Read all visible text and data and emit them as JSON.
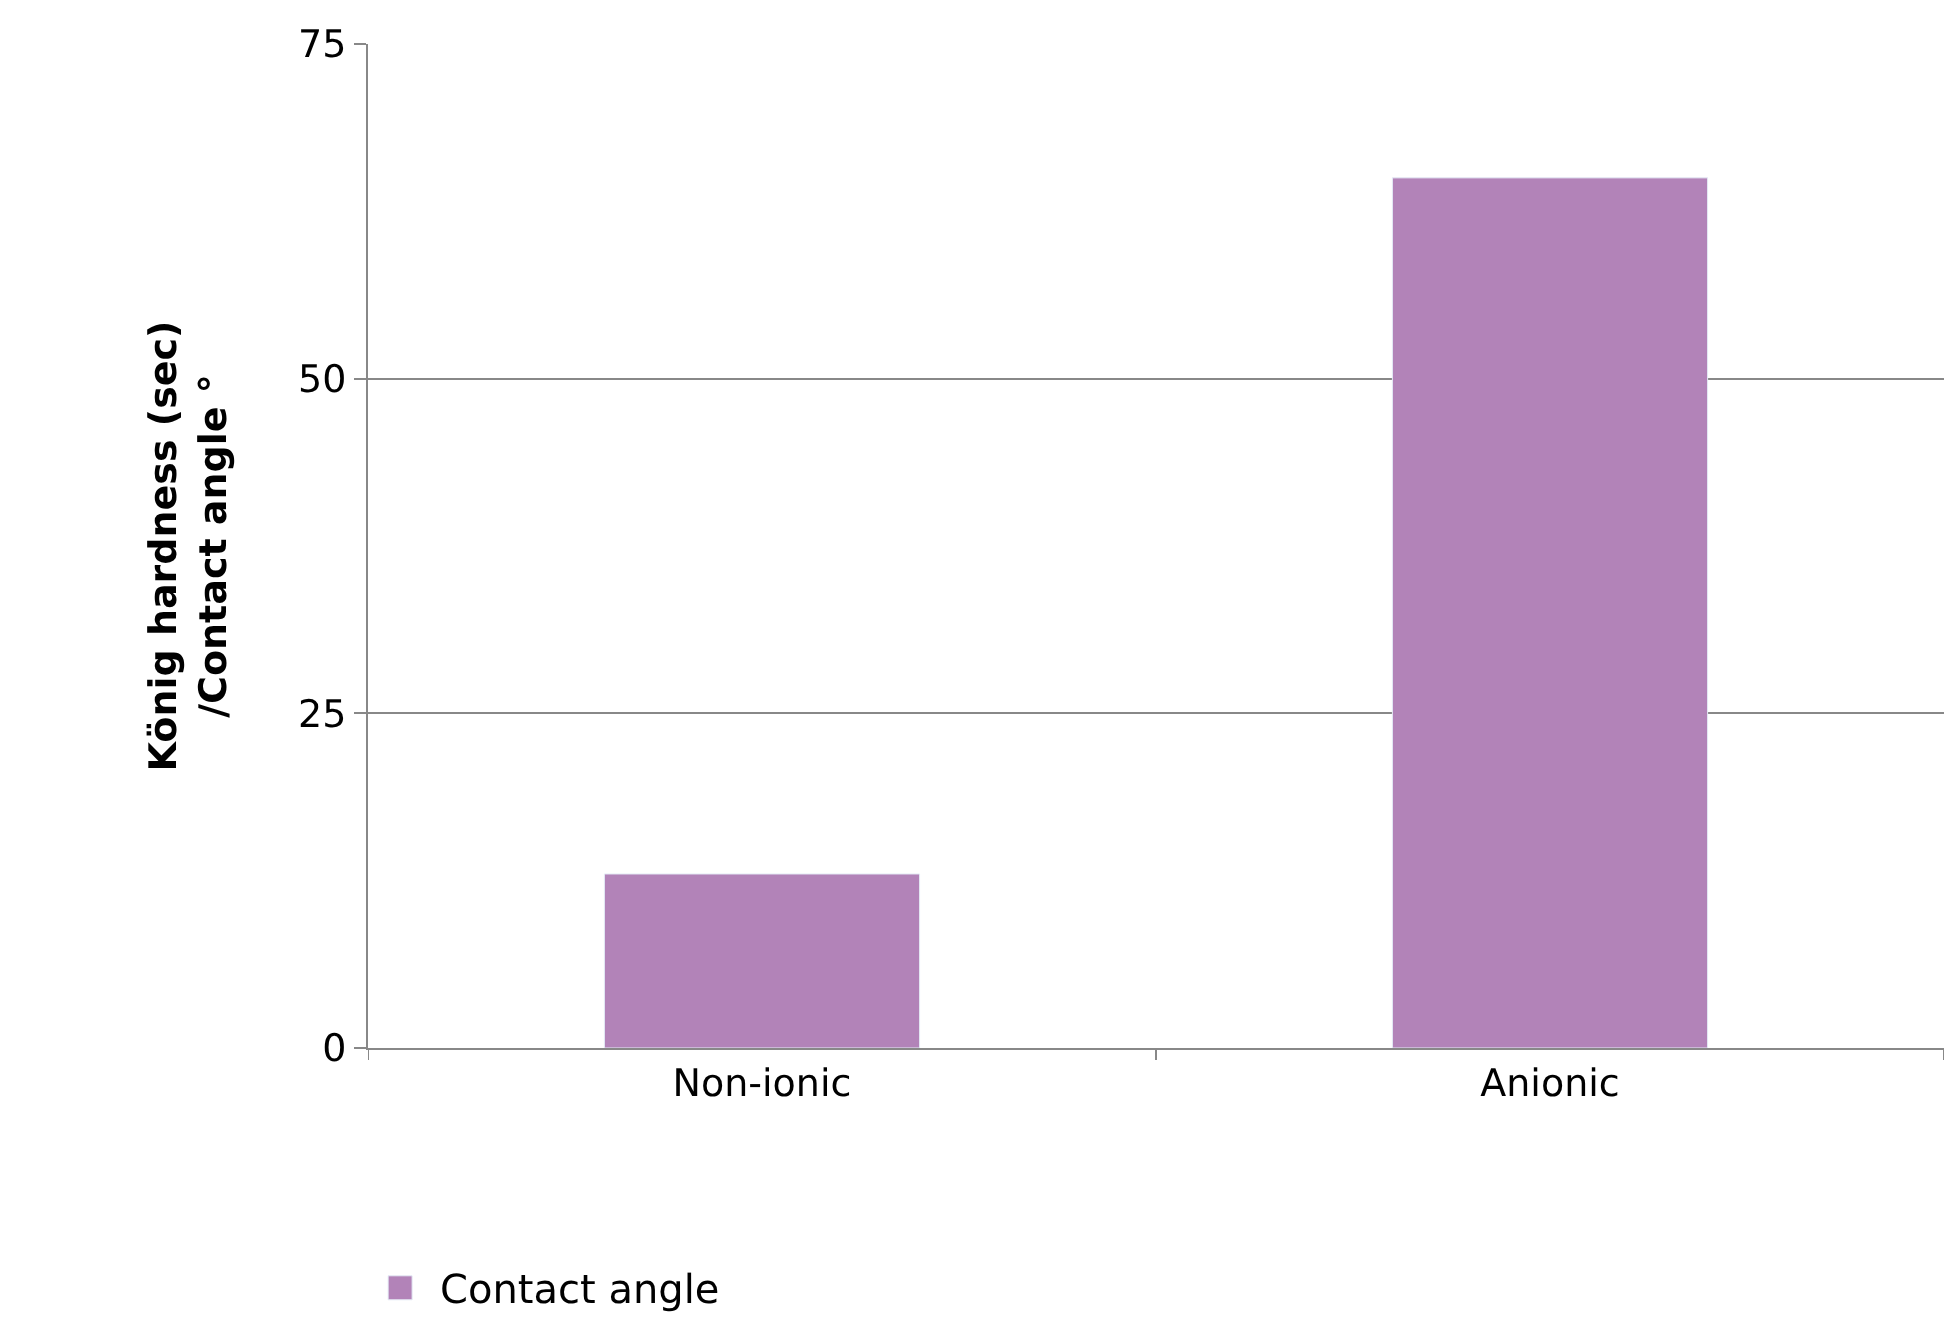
{
  "chart_data": {
    "type": "bar",
    "ylabel": "König hardness (sec)\n/Contact angle °",
    "categories": [
      "Non-ionic",
      "Anionic"
    ],
    "series": [
      {
        "name": "Contact angle",
        "color": "#b283b8",
        "values": [
          13,
          65
        ]
      }
    ],
    "ylim": [
      0,
      75
    ],
    "yticks": [
      0,
      25,
      50,
      75
    ],
    "grid": "y",
    "legend": "bottom left"
  }
}
